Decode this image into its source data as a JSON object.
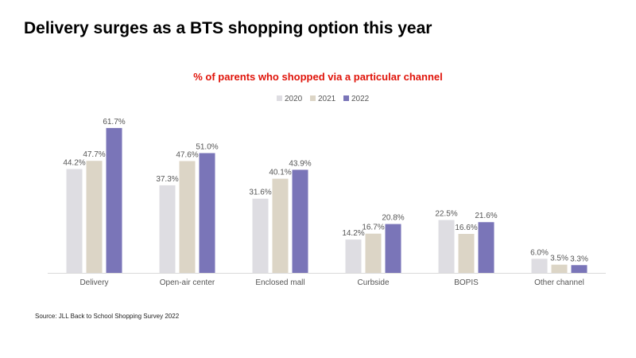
{
  "page": {
    "title": "Delivery surges as a BTS shopping option this year",
    "source": "Source: JLL Back to School Shopping Survey 2022"
  },
  "chart_data": {
    "type": "bar",
    "title": "% of parents who shopped via a particular channel",
    "categories": [
      "Delivery",
      "Open-air center",
      "Enclosed mall",
      "Curbside",
      "BOPIS",
      "Other channel"
    ],
    "series": [
      {
        "name": "2020",
        "color": "#dedde2",
        "values": [
          44.2,
          37.3,
          31.6,
          14.2,
          22.5,
          6.0
        ],
        "labels": [
          "44.2%",
          "37.3%",
          "31.6%",
          "14.2%",
          "22.5%",
          "6.0%"
        ]
      },
      {
        "name": "2021",
        "color": "#dcd5c6",
        "values": [
          47.7,
          47.6,
          40.1,
          16.7,
          16.6,
          3.5
        ],
        "labels": [
          "47.7%",
          "47.6%",
          "40.1%",
          "16.7%",
          "16.6%",
          "3.5%"
        ]
      },
      {
        "name": "2022",
        "color": "#7a75b8",
        "values": [
          61.7,
          51.0,
          43.9,
          20.8,
          21.6,
          3.3
        ],
        "labels": [
          "61.7%",
          "51.0%",
          "43.9%",
          "20.8%",
          "21.6%",
          "3.3%"
        ]
      }
    ],
    "ylim": [
      0,
      62
    ],
    "grid": false,
    "legend_position": "top-center",
    "axis_color": "#d9d9d9"
  }
}
